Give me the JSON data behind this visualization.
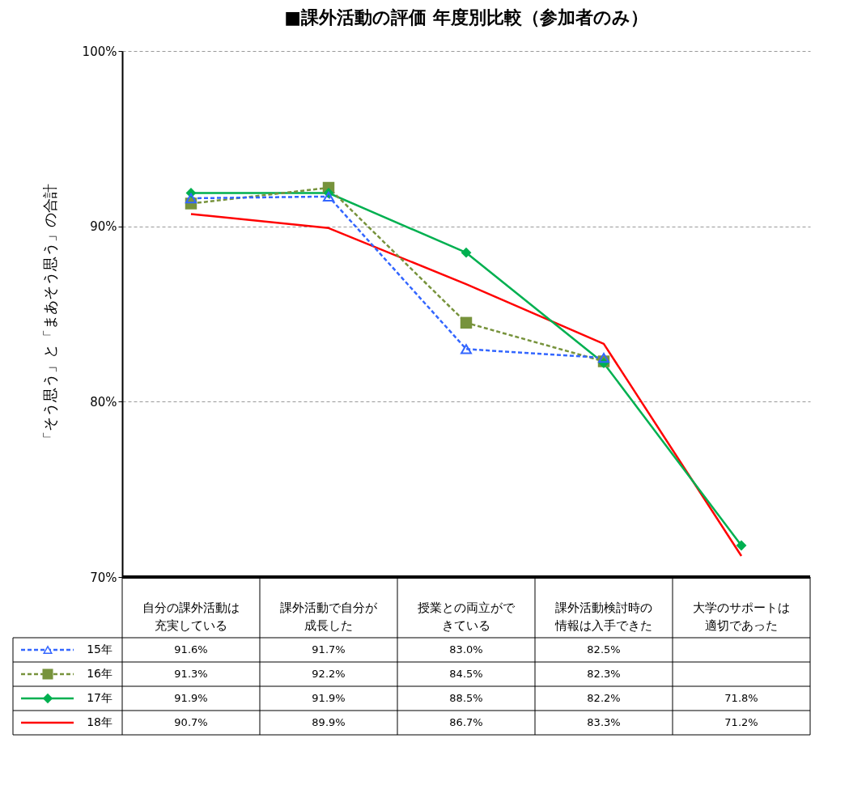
{
  "chart_data": {
    "type": "line",
    "title": "■課外活動の評価 年度別比較（参加者のみ）",
    "ylabel": "「そう思う」と「まあそう思う」の合計",
    "categories": [
      "自分の課外活動は充実している",
      "課外活動で自分が成長した",
      "授業との両立ができている",
      "課外活動検討時の情報は入手できた",
      "大学のサポートは適切であった"
    ],
    "series": [
      {
        "name": "15年",
        "color": "#3366ff",
        "line_style": "dashed",
        "marker": "triangle",
        "values": [
          91.6,
          91.7,
          83.0,
          82.5,
          null
        ],
        "value_labels": [
          "91.6%",
          "91.7%",
          "83.0%",
          "82.5%",
          null
        ]
      },
      {
        "name": "16年",
        "color": "#77933c",
        "line_style": "dashed",
        "marker": "square",
        "values": [
          91.3,
          92.2,
          84.5,
          82.3,
          null
        ],
        "value_labels": [
          "91.3%",
          "92.2%",
          "84.5%",
          "82.3%",
          null
        ]
      },
      {
        "name": "17年",
        "color": "#00b050",
        "line_style": "solid",
        "marker": "diamond",
        "values": [
          91.9,
          91.9,
          88.5,
          82.2,
          71.8
        ],
        "value_labels": [
          "91.9%",
          "91.9%",
          "88.5%",
          "82.2%",
          "71.8%"
        ]
      },
      {
        "name": "18年",
        "color": "#ff0000",
        "line_style": "solid",
        "marker": "none",
        "values": [
          90.7,
          89.9,
          86.7,
          83.3,
          71.2
        ],
        "value_labels": [
          "90.7%",
          "89.9%",
          "86.7%",
          "83.3%",
          "71.2%"
        ]
      }
    ],
    "ylim": [
      70,
      100
    ],
    "yticks": [
      {
        "value": 70,
        "label": "70%"
      },
      {
        "value": 80,
        "label": "80%"
      },
      {
        "value": 90,
        "label": "90%"
      },
      {
        "value": 100,
        "label": "100%"
      }
    ],
    "grid": "y",
    "legend": "bottom left"
  }
}
